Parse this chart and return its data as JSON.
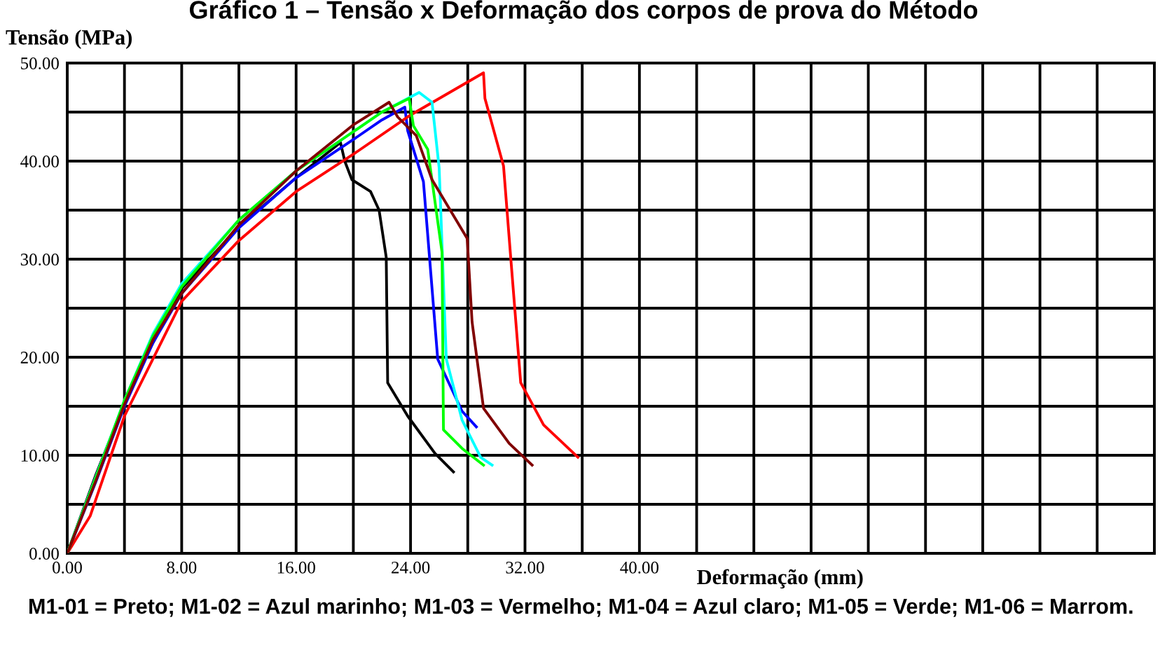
{
  "chart_data": {
    "type": "line",
    "title": "Gráfico 1 – Tensão x Deformação dos corpos de prova do Método",
    "ylabel": "Tensão (MPa)",
    "xlabel": "Deformação (mm)",
    "annotations": [
      "M1-01 = Preto; M1-02 = Azul marinho; M1-03 = Vermelho; M1-04 = Azul claro; M1-05 = Verde; M1-06 = Marrom."
    ],
    "xlim": [
      0,
      76
    ],
    "ylim": [
      0,
      50
    ],
    "xticks": [
      {
        "value": 0,
        "label": "0.00"
      },
      {
        "value": 4,
        "label": null
      },
      {
        "value": 8,
        "label": "8.00"
      },
      {
        "value": 12,
        "label": null
      },
      {
        "value": 16,
        "label": "16.00"
      },
      {
        "value": 20,
        "label": null
      },
      {
        "value": 24,
        "label": "24.00"
      },
      {
        "value": 28,
        "label": null
      },
      {
        "value": 32,
        "label": "32.00"
      },
      {
        "value": 36,
        "label": null
      },
      {
        "value": 40,
        "label": "40.00"
      },
      {
        "value": 44,
        "label": null
      },
      {
        "value": 48,
        "label": null
      },
      {
        "value": 52,
        "label": null
      },
      {
        "value": 56,
        "label": null
      },
      {
        "value": 60,
        "label": null
      },
      {
        "value": 64,
        "label": null
      },
      {
        "value": 68,
        "label": null
      },
      {
        "value": 72,
        "label": null
      },
      {
        "value": 76,
        "label": null
      }
    ],
    "yticks": [
      {
        "value": 0,
        "label": "0.00"
      },
      {
        "value": 5,
        "label": null
      },
      {
        "value": 10,
        "label": "10.00"
      },
      {
        "value": 15,
        "label": null
      },
      {
        "value": 20,
        "label": "20.00"
      },
      {
        "value": 25,
        "label": null
      },
      {
        "value": 30,
        "label": "30.00"
      },
      {
        "value": 35,
        "label": null
      },
      {
        "value": 40,
        "label": "40.00"
      },
      {
        "value": 45,
        "label": null
      },
      {
        "value": 50,
        "label": "50.00"
      }
    ],
    "grid": true,
    "legend": false,
    "marker": "none",
    "line_style": "solid",
    "series": [
      {
        "color": "#000000",
        "x": [
          0,
          2,
          4.7,
          8,
          12,
          16,
          19.1,
          19.4,
          19.9,
          21.2,
          21.8,
          22.3,
          22.4,
          23.8,
          25.7,
          27.0
        ],
        "values": [
          0,
          8,
          17.9,
          27,
          33.3,
          38.3,
          41.9,
          40,
          38.1,
          36.9,
          35,
          30.2,
          17.4,
          14,
          10.2,
          8.3
        ]
      },
      {
        "color": "#0000ff",
        "x": [
          0,
          2,
          4,
          6,
          8,
          12,
          16,
          20,
          22,
          23.6,
          23.8,
          24.9,
          25.9,
          27.6,
          28.6
        ],
        "values": [
          0,
          7.3,
          15,
          21.5,
          26.5,
          33.2,
          38.3,
          42.2,
          44.2,
          45.5,
          43.1,
          37.9,
          19.8,
          14.5,
          12.9
        ]
      },
      {
        "color": "#ff0000",
        "x": [
          0,
          1.6,
          4,
          8,
          12,
          16,
          20,
          24,
          29.1,
          29.2,
          30.5,
          31.0,
          31.7,
          33.3,
          35.7
        ],
        "values": [
          0,
          3.8,
          14,
          25.7,
          31.9,
          36.9,
          40.7,
          44.7,
          49,
          46.4,
          39.5,
          30.2,
          17.4,
          13.1,
          9.8
        ]
      },
      {
        "color": "#00ffff",
        "x": [
          0,
          4,
          6,
          8,
          12,
          16,
          20,
          22,
          24.6,
          25.5,
          26.0,
          26.5,
          27.6,
          28.9,
          29.7
        ],
        "values": [
          0,
          15.6,
          22.4,
          27.5,
          34,
          39,
          43,
          45,
          47,
          46,
          39.3,
          19.8,
          13.6,
          9.8,
          9.0
        ]
      },
      {
        "color": "#00ff00",
        "x": [
          0,
          2,
          4,
          6,
          8,
          12,
          16,
          20,
          22,
          23.9,
          24.2,
          25.2,
          26.2,
          26.3,
          27.6,
          29.1
        ],
        "values": [
          0,
          7.7,
          15.6,
          22.2,
          27.2,
          34,
          39,
          43,
          45,
          46.4,
          43.6,
          41.2,
          30.7,
          12.6,
          10.7,
          9.0
        ]
      },
      {
        "color": "#800000",
        "x": [
          0,
          2,
          4,
          6,
          8,
          12,
          16,
          20,
          22.5,
          23.1,
          24.4,
          25.5,
          27.96,
          28.3,
          29.1,
          30.9,
          32.5
        ],
        "values": [
          0,
          7.4,
          15.2,
          21.8,
          26.5,
          33.5,
          39,
          43.7,
          46,
          44.5,
          42.6,
          38.1,
          32.1,
          23.6,
          14.8,
          11.2,
          9.0
        ]
      }
    ]
  }
}
